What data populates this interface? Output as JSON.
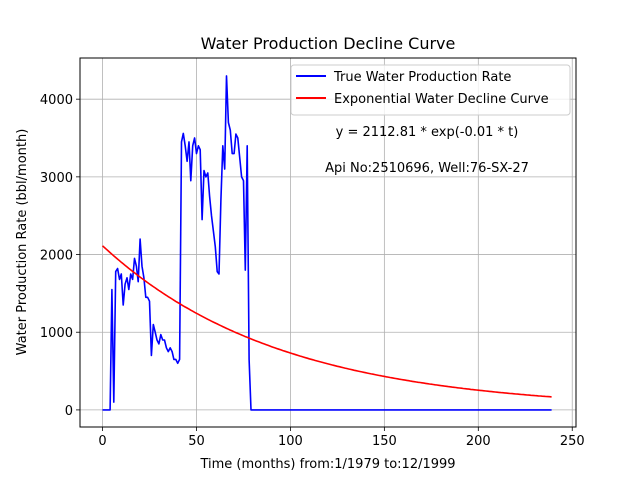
{
  "chart_data": {
    "type": "line",
    "title": "Water Production Decline Curve",
    "xlabel": "Time (months) from:1/1979 to:12/1999",
    "ylabel": "Water Production Rate (bbl/month)",
    "xlim": [
      -12,
      252
    ],
    "ylim": [
      -220,
      4530
    ],
    "xticks": [
      0,
      50,
      100,
      150,
      200,
      250
    ],
    "yticks": [
      0,
      1000,
      2000,
      3000,
      4000
    ],
    "grid": true,
    "legend_position": "top-right",
    "annotations": [
      "y = 2112.81 * exp(-0.01 * t)",
      "Api No:2510696, Well:76-SX-27"
    ],
    "series": [
      {
        "name": "True Water Production Rate",
        "color": "#0000ff",
        "x": [
          0,
          1,
          2,
          3,
          4,
          5,
          6,
          7,
          8,
          9,
          10,
          11,
          12,
          13,
          14,
          15,
          16,
          17,
          18,
          19,
          20,
          21,
          22,
          23,
          24,
          25,
          26,
          27,
          28,
          29,
          30,
          31,
          32,
          33,
          34,
          35,
          36,
          37,
          38,
          39,
          40,
          41,
          42,
          43,
          44,
          45,
          46,
          47,
          48,
          49,
          50,
          51,
          52,
          53,
          54,
          55,
          56,
          57,
          58,
          59,
          60,
          61,
          62,
          63,
          64,
          65,
          66,
          67,
          68,
          69,
          70,
          71,
          72,
          73,
          74,
          75,
          76,
          77,
          78,
          79,
          80,
          81,
          82,
          83,
          84,
          85,
          86,
          239
        ],
        "y": [
          0,
          0,
          0,
          0,
          0,
          1550,
          100,
          1780,
          1820,
          1680,
          1750,
          1350,
          1620,
          1700,
          1550,
          1750,
          1680,
          1950,
          1850,
          1650,
          2200,
          1850,
          1700,
          1450,
          1450,
          1400,
          700,
          1100,
          1000,
          900,
          850,
          970,
          900,
          900,
          800,
          750,
          800,
          750,
          650,
          650,
          600,
          650,
          3450,
          3560,
          3400,
          3200,
          3450,
          2950,
          3400,
          3500,
          3300,
          3400,
          3350,
          2450,
          3080,
          3000,
          3050,
          2750,
          2500,
          2300,
          2100,
          1780,
          1750,
          2700,
          3400,
          3100,
          4300,
          3700,
          3600,
          3300,
          3300,
          3550,
          3500,
          3250,
          3000,
          2950,
          1800,
          3400,
          650,
          0,
          0,
          0,
          0,
          0,
          0,
          0,
          0,
          0
        ]
      },
      {
        "name": "Exponential Water Decline Curve",
        "color": "#ff0000",
        "a": 2112.81,
        "b": 0.0106,
        "t_range": [
          0,
          239
        ]
      }
    ]
  }
}
